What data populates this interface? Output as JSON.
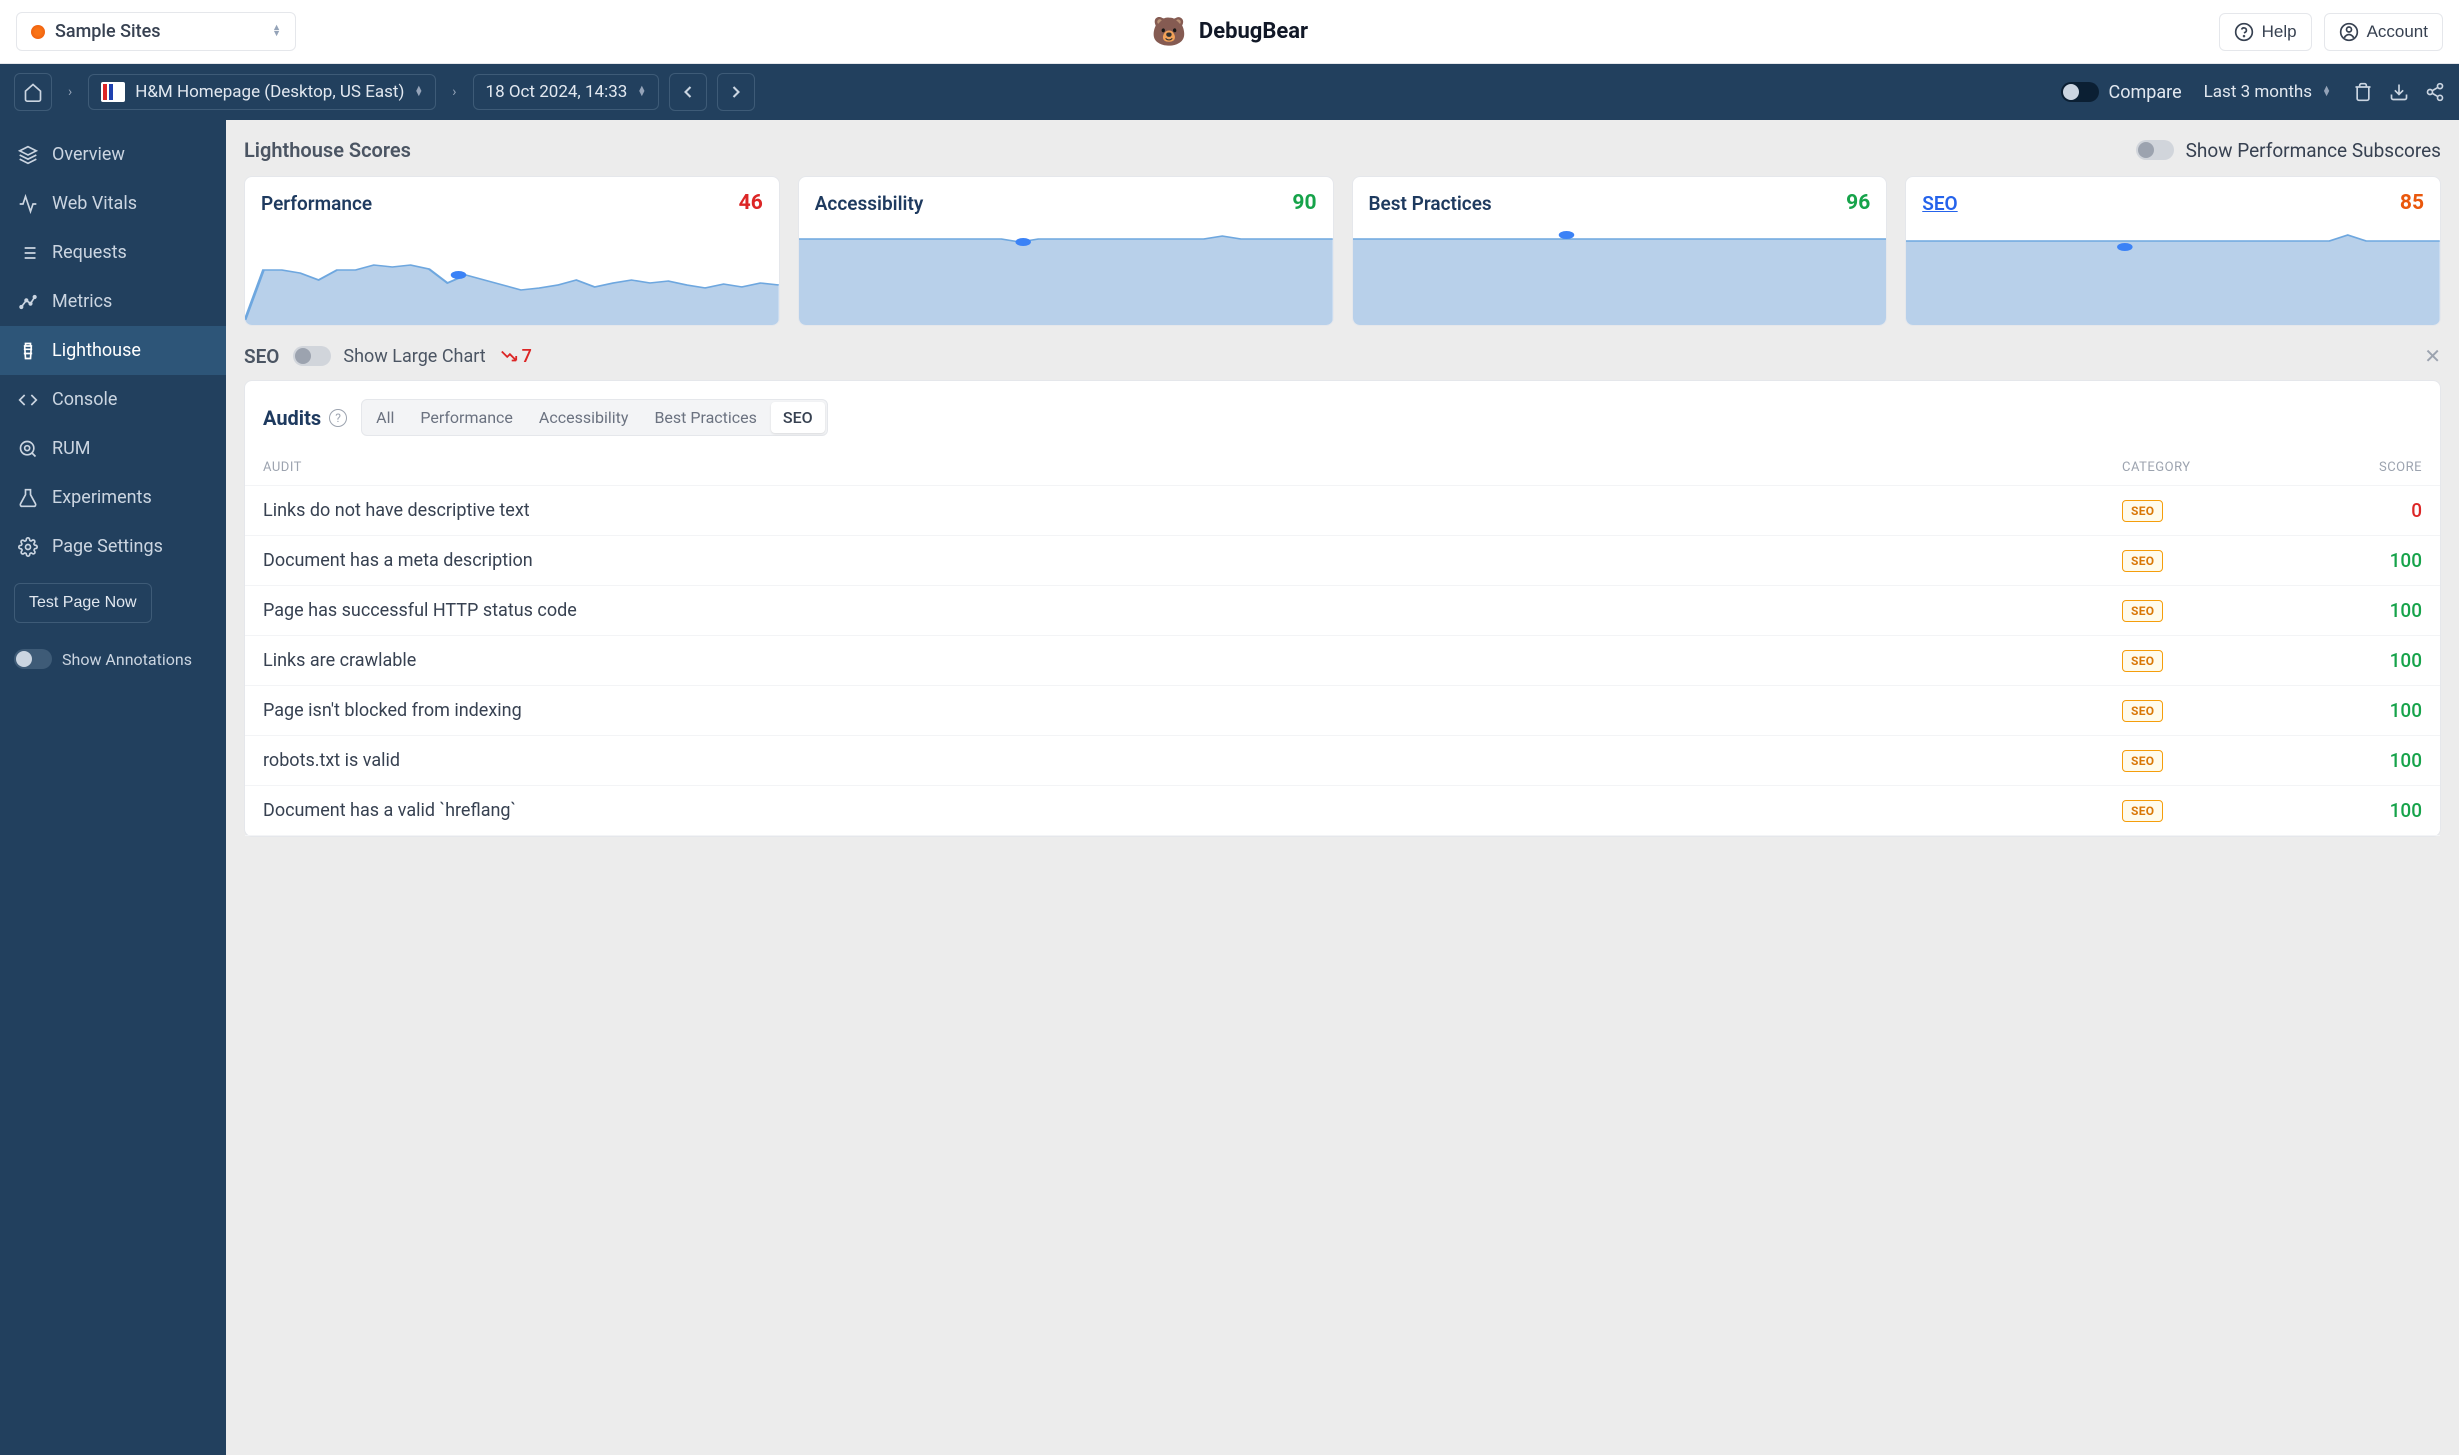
{
  "top": {
    "site_name": "Sample Sites",
    "brand": "DebugBear",
    "help": "Help",
    "account": "Account"
  },
  "nav": {
    "page_name": "H&M Homepage (Desktop, US East)",
    "date": "18 Oct 2024, 14:33",
    "compare": "Compare",
    "range": "Last 3 months"
  },
  "sidebar": {
    "items": [
      {
        "label": "Overview",
        "icon": "layers"
      },
      {
        "label": "Web Vitals",
        "icon": "activity"
      },
      {
        "label": "Requests",
        "icon": "list"
      },
      {
        "label": "Metrics",
        "icon": "trending"
      },
      {
        "label": "Lighthouse",
        "icon": "lighthouse",
        "active": true
      },
      {
        "label": "Console",
        "icon": "code"
      },
      {
        "label": "RUM",
        "icon": "search"
      },
      {
        "label": "Experiments",
        "icon": "flask"
      },
      {
        "label": "Page Settings",
        "icon": "gear"
      }
    ],
    "test_btn": "Test Page Now",
    "annotations": "Show Annotations"
  },
  "scores": {
    "title": "Lighthouse Scores",
    "subscores_label": "Show Performance Subscores",
    "cards": [
      {
        "title": "Performance",
        "value": 46,
        "color": "score-red",
        "chart": {
          "fill": "#b8d0ea",
          "stroke": "#6ea7df",
          "baseline": 0.95,
          "points": [
            0.95,
            0.45,
            0.45,
            0.48,
            0.55,
            0.45,
            0.45,
            0.4,
            0.42,
            0.4,
            0.44,
            0.58,
            0.5,
            0.55,
            0.6,
            0.65,
            0.63,
            0.6,
            0.55,
            0.62,
            0.58,
            0.55,
            0.58,
            0.56,
            0.6,
            0.63,
            0.59,
            0.62,
            0.58,
            0.6
          ],
          "dot_x": 0.4,
          "dot_y": 0.5
        }
      },
      {
        "title": "Accessibility",
        "value": 90,
        "color": "score-green",
        "chart": {
          "fill": "#b8d0ea",
          "stroke": "#6ea7df",
          "baseline": 0.14,
          "points": [
            0.14,
            0.14,
            0.14,
            0.14,
            0.14,
            0.14,
            0.14,
            0.14,
            0.14,
            0.14,
            0.14,
            0.14,
            0.17,
            0.14,
            0.14,
            0.14,
            0.14,
            0.14,
            0.14,
            0.14,
            0.14,
            0.14,
            0.14,
            0.11,
            0.14,
            0.14,
            0.14,
            0.14,
            0.14,
            0.14
          ],
          "dot_x": 0.42,
          "dot_y": 0.17
        }
      },
      {
        "title": "Best Practices",
        "value": 96,
        "color": "score-green",
        "chart": {
          "fill": "#b8d0ea",
          "stroke": "#6ea7df",
          "baseline": 0.14,
          "points": [
            0.14,
            0.14,
            0.14,
            0.14,
            0.14,
            0.14,
            0.14,
            0.14,
            0.14,
            0.14,
            0.14,
            0.14,
            0.14,
            0.14,
            0.14,
            0.14,
            0.14,
            0.14,
            0.14,
            0.14,
            0.14,
            0.14,
            0.14,
            0.14,
            0.14,
            0.14,
            0.14,
            0.14,
            0.14,
            0.14
          ],
          "dot_x": 0.4,
          "dot_y": 0.1
        }
      },
      {
        "title": "SEO",
        "value": 85,
        "color": "score-orange",
        "link": true,
        "chart": {
          "fill": "#b8d0ea",
          "stroke": "#6ea7df",
          "baseline": 0.16,
          "points": [
            0.16,
            0.16,
            0.16,
            0.16,
            0.16,
            0.16,
            0.16,
            0.16,
            0.16,
            0.16,
            0.16,
            0.16,
            0.16,
            0.16,
            0.16,
            0.16,
            0.16,
            0.16,
            0.16,
            0.16,
            0.16,
            0.16,
            0.16,
            0.16,
            0.1,
            0.16,
            0.16,
            0.16,
            0.16,
            0.16
          ],
          "dot_x": 0.41,
          "dot_y": 0.22
        }
      }
    ]
  },
  "seo_section": {
    "label": "SEO",
    "large_chart": "Show Large Chart",
    "trend_value": "7"
  },
  "audits": {
    "title": "Audits",
    "tabs": [
      "All",
      "Performance",
      "Accessibility",
      "Best Practices",
      "SEO"
    ],
    "active_tab": 4,
    "columns": {
      "audit": "AUDIT",
      "category": "CATEGORY",
      "score": "SCORE"
    },
    "rows": [
      {
        "name": "Links do not have descriptive text",
        "category": "SEO",
        "score": 0,
        "score_color": "score-red"
      },
      {
        "name": "Document has a meta description",
        "category": "SEO",
        "score": 100,
        "score_color": "score-green"
      },
      {
        "name": "Page has successful HTTP status code",
        "category": "SEO",
        "score": 100,
        "score_color": "score-green"
      },
      {
        "name": "Links are crawlable",
        "category": "SEO",
        "score": 100,
        "score_color": "score-green"
      },
      {
        "name": "Page isn't blocked from indexing",
        "category": "SEO",
        "score": 100,
        "score_color": "score-green"
      },
      {
        "name": "robots.txt is valid",
        "category": "SEO",
        "score": 100,
        "score_color": "score-green"
      },
      {
        "name": "Document has a valid `hreflang`",
        "category": "SEO",
        "score": 100,
        "score_color": "score-green"
      }
    ]
  }
}
